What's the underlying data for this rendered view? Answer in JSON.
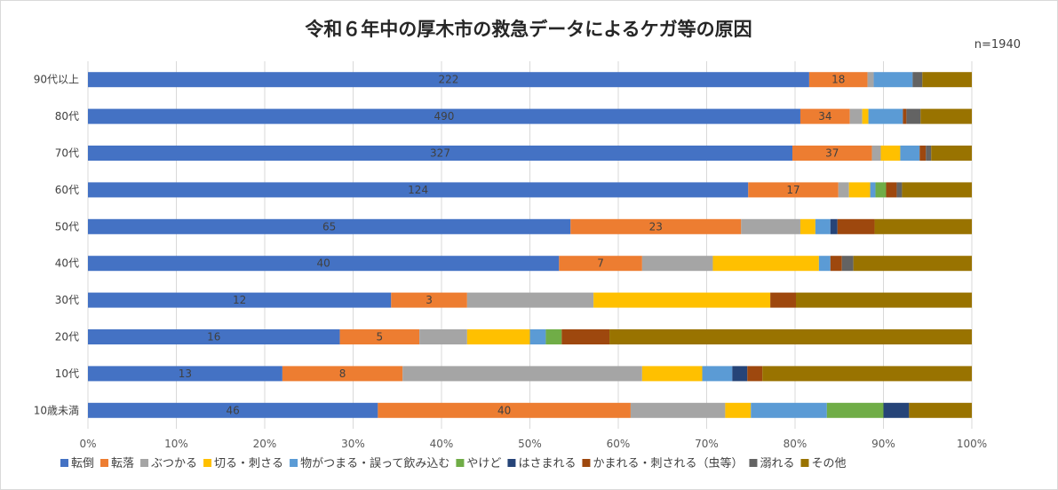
{
  "chart_data": {
    "type": "bar",
    "orientation": "horizontal",
    "stacked": "percent",
    "title": "令和６年中の厚木市の救急データによるケガ等の原因",
    "note": "n=1940",
    "xlabel": "",
    "ylabel": "",
    "xlim": [
      0,
      100
    ],
    "x_ticks": [
      "0%",
      "10%",
      "20%",
      "30%",
      "40%",
      "50%",
      "60%",
      "70%",
      "80%",
      "90%",
      "100%"
    ],
    "grid": true,
    "legend_position": "bottom",
    "categories": [
      "90代以上",
      "80代",
      "70代",
      "60代",
      "50代",
      "40代",
      "30代",
      "20代",
      "10代",
      "10歳未満"
    ],
    "series": [
      {
        "name": "転倒",
        "color": "#4472c4",
        "values": [
          81.6,
          80.6,
          79.7,
          74.7,
          54.6,
          53.3,
          34.3,
          28.5,
          22.0,
          32.8
        ],
        "labels": [
          "222",
          "490",
          "327",
          "124",
          "65",
          "40",
          "12",
          "16",
          "13",
          "46"
        ]
      },
      {
        "name": "転落",
        "color": "#ed7d31",
        "values": [
          6.6,
          5.6,
          9.0,
          10.2,
          19.3,
          9.4,
          8.6,
          9.0,
          13.6,
          28.6
        ],
        "labels": [
          "18",
          "34",
          "37",
          "17",
          "23",
          "7",
          "3",
          "5",
          "8",
          "40"
        ]
      },
      {
        "name": "ぶつかる",
        "color": "#a5a5a5",
        "values": [
          0.7,
          1.4,
          1.0,
          1.2,
          6.7,
          8.0,
          14.3,
          5.4,
          27.1,
          10.7
        ],
        "labels": [
          "",
          "",
          "",
          "",
          "",
          "",
          "",
          "",
          "",
          ""
        ]
      },
      {
        "name": "切る・刺さる",
        "color": "#ffc000",
        "values": [
          0.0,
          0.7,
          2.2,
          2.4,
          1.7,
          12.0,
          20.0,
          7.1,
          6.8,
          2.9
        ],
        "labels": [
          "",
          "",
          "",
          "",
          "",
          "",
          "",
          "",
          "",
          ""
        ]
      },
      {
        "name": "物がつまる・誤って飲み込む",
        "color": "#5b9bd5",
        "values": [
          4.4,
          3.9,
          2.2,
          0.6,
          1.7,
          1.3,
          0.0,
          1.8,
          3.4,
          8.6
        ],
        "labels": [
          "",
          "",
          "",
          "",
          "",
          "",
          "",
          "",
          "",
          ""
        ]
      },
      {
        "name": "やけど",
        "color": "#70ad47",
        "values": [
          0.0,
          0.0,
          0.0,
          1.2,
          0.0,
          0.0,
          0.0,
          1.8,
          0.0,
          6.4
        ],
        "labels": [
          "",
          "",
          "",
          "",
          "",
          "",
          "",
          "",
          "",
          ""
        ]
      },
      {
        "name": "はさまれる",
        "color": "#264478",
        "values": [
          0.0,
          0.0,
          0.0,
          0.0,
          0.8,
          0.0,
          0.0,
          0.0,
          1.7,
          2.9
        ],
        "labels": [
          "",
          "",
          "",
          "",
          "",
          "",
          "",
          "",
          "",
          ""
        ]
      },
      {
        "name": "かまれる・刺される（虫等）",
        "color": "#9e480e",
        "values": [
          0.0,
          0.4,
          0.7,
          1.2,
          4.2,
          1.3,
          2.9,
          5.4,
          1.7,
          0.0
        ],
        "labels": [
          "",
          "",
          "",
          "",
          "",
          "",
          "",
          "",
          "",
          ""
        ]
      },
      {
        "name": "溺れる",
        "color": "#636363",
        "values": [
          1.1,
          1.6,
          0.6,
          0.6,
          0.0,
          1.3,
          0.0,
          0.0,
          0.0,
          0.0
        ],
        "labels": [
          "",
          "",
          "",
          "",
          "",
          "",
          "",
          "",
          "",
          ""
        ]
      },
      {
        "name": "その他",
        "color": "#997300",
        "values": [
          5.6,
          5.8,
          4.6,
          7.9,
          11.0,
          13.4,
          19.9,
          41.0,
          23.7,
          7.1
        ],
        "labels": [
          "",
          "",
          "",
          "",
          "",
          "",
          "",
          "",
          "",
          ""
        ]
      }
    ]
  }
}
